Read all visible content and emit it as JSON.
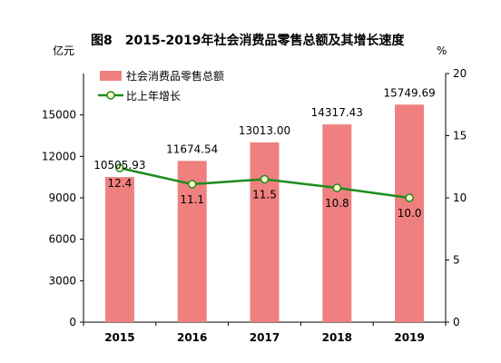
{
  "chart_data": {
    "type": "bar",
    "title": "图8　2015-2019年社会消费品零售总额及其增长速度",
    "categories": [
      "2015",
      "2016",
      "2017",
      "2018",
      "2019"
    ],
    "y_left": {
      "unit": "亿元",
      "lim": [
        0,
        18000
      ],
      "ticks": [
        0,
        3000,
        6000,
        9000,
        12000,
        15000
      ]
    },
    "y_right": {
      "unit": "%",
      "lim": [
        0,
        20
      ],
      "ticks": [
        0,
        5,
        10,
        15,
        20
      ]
    },
    "series": [
      {
        "name": "社会消费品零售总额",
        "type": "bar",
        "axis": "left",
        "color": "#F08080",
        "values": [
          10505.93,
          11674.54,
          13013.0,
          14317.43,
          15749.69
        ],
        "labels": [
          "10505.93",
          "11674.54",
          "13013.00",
          "14317.43",
          "15749.69"
        ]
      },
      {
        "name": "比上年增长",
        "type": "line",
        "axis": "right",
        "color": "#1E8B1E",
        "marker_fill": "#FFFFCC",
        "values": [
          12.4,
          11.1,
          11.5,
          10.8,
          10.0
        ],
        "labels": [
          "12.4",
          "11.1",
          "11.5",
          "10.8",
          "10.0"
        ]
      }
    ],
    "legend_position": "top-left",
    "grid": false
  }
}
